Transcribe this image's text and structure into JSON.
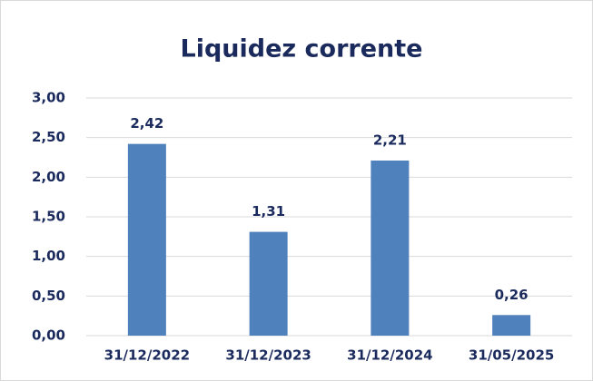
{
  "chart_data": {
    "type": "bar",
    "title": "Liquidez corrente",
    "categories": [
      "31/12/2022",
      "31/12/2023",
      "31/12/2024",
      "31/05/2025"
    ],
    "values": [
      2.42,
      1.31,
      2.21,
      0.26
    ],
    "value_labels": [
      "2,42",
      "1,31",
      "2,21",
      "0,26"
    ],
    "color": "#4f81bd",
    "ylim": [
      0,
      3
    ],
    "yticks": [
      {
        "value": 0,
        "label": "0,00"
      },
      {
        "value": 0.5,
        "label": "0,50"
      },
      {
        "value": 1,
        "label": "1,00"
      },
      {
        "value": 1.5,
        "label": "1,50"
      },
      {
        "value": 2,
        "label": "2,00"
      },
      {
        "value": 2.5,
        "label": "2,50"
      },
      {
        "value": 3,
        "label": "3,00"
      }
    ],
    "grid": true
  }
}
